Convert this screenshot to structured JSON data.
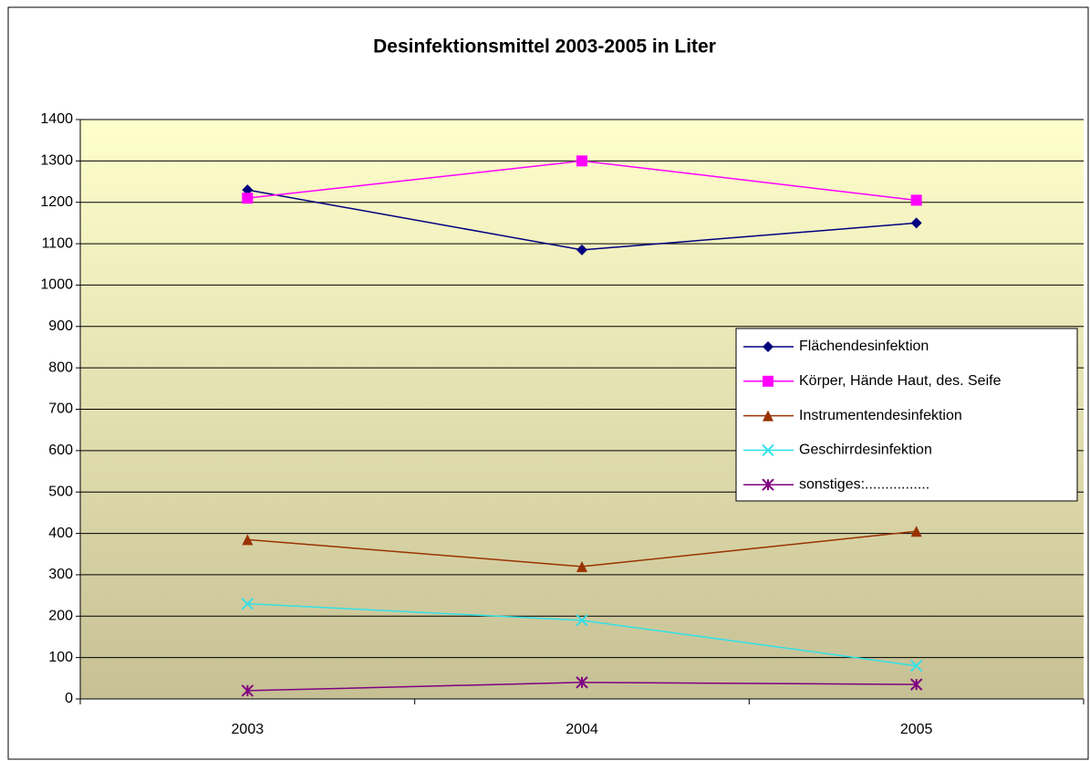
{
  "chart_data": {
    "type": "line",
    "title": "Desinfektionsmittel 2003-2005 in Liter",
    "categories": [
      "2003",
      "2004",
      "2005"
    ],
    "series": [
      {
        "name": "Flächendesinfektion",
        "color": "#000080",
        "marker": "diamond",
        "values": [
          1230,
          1085,
          1150
        ]
      },
      {
        "name": "Körper, Hände Haut, des. Seife",
        "color": "#ff00ff",
        "marker": "square",
        "values": [
          1210,
          1300,
          1205
        ]
      },
      {
        "name": "Instrumentendesinfektion",
        "color": "#993300",
        "marker": "triangle",
        "values": [
          385,
          320,
          405
        ]
      },
      {
        "name": "Geschirrdesinfektion",
        "color": "#33e0e6",
        "marker": "x",
        "values": [
          230,
          190,
          80
        ]
      },
      {
        "name": "sonstiges:................",
        "color": "#800080",
        "marker": "asterisk",
        "values": [
          20,
          40,
          35
        ]
      }
    ],
    "ylim": [
      0,
      1400
    ],
    "yticks": [
      0,
      100,
      200,
      300,
      400,
      500,
      600,
      700,
      800,
      900,
      1000,
      1100,
      1200,
      1300,
      1400
    ],
    "grid": true,
    "legend": "right"
  }
}
